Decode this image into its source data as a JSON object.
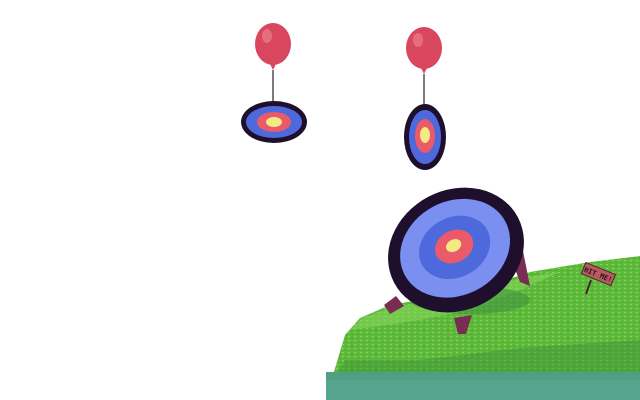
{
  "scene": {
    "sign": {
      "text": "HIT ME!"
    }
  },
  "colors": {
    "background": "#ffffff",
    "balloon": "#d8475e",
    "balloon_highlight": "#ec7d8c",
    "string": "#2a1e30",
    "target_rim": "#1e0f2c",
    "target_outer": "#7a8ff0",
    "target_mid": "#4e69dc",
    "target_red": "#ea5a68",
    "target_center": "#f4ea84",
    "grass_light": "#86d65a",
    "grass": "#5fba3c",
    "grass_dark": "#3c8f3a",
    "ground_water": "#4f9f82",
    "leg": "#7a2d52",
    "sign_board": "#b65a60",
    "sign_post": "#4a2530"
  },
  "icons": [
    "balloon-icon",
    "target-icon",
    "sign-icon"
  ]
}
